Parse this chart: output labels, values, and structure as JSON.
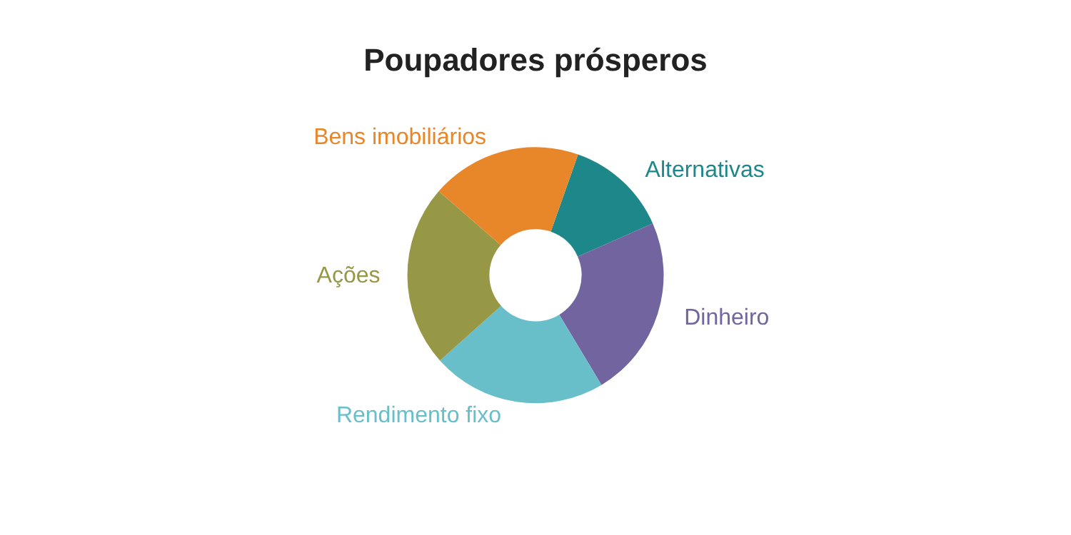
{
  "chart_data": {
    "type": "donut",
    "title": "Poupadores prósperos",
    "categories": [
      "Alternativas",
      "Dinheiro",
      "Rendimento fixo",
      "Ações",
      "Bens imobiliários"
    ],
    "values": [
      13,
      23,
      22,
      23,
      19
    ],
    "colors": [
      "#1e8789",
      "#72659f",
      "#68bfca",
      "#979845",
      "#e8872a"
    ],
    "legend": false
  }
}
